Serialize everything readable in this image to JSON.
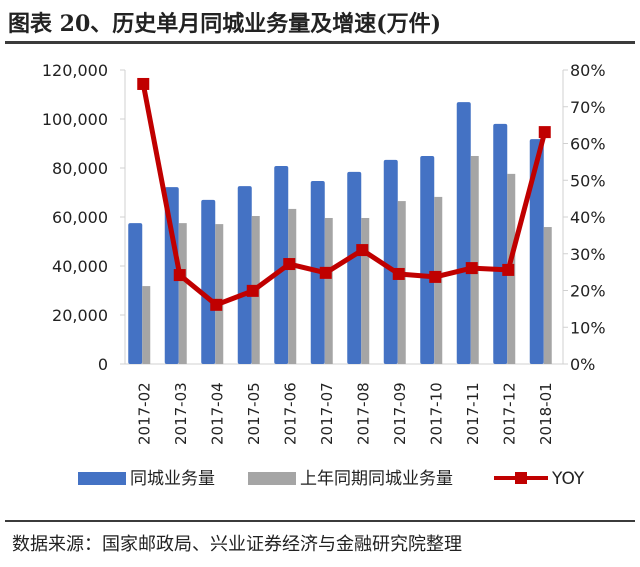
{
  "title": "图表 20、历史单月同城业务量及增速(万件)",
  "source": "数据来源：国家邮政局、兴业证券经济与金融研究院整理",
  "chart_data": {
    "type": "bar+line",
    "categories": [
      "2017-02",
      "2017-03",
      "2017-04",
      "2017-05",
      "2017-06",
      "2017-07",
      "2017-08",
      "2017-09",
      "2017-10",
      "2017-11",
      "2017-12",
      "2018-01"
    ],
    "series": [
      {
        "name": "同城业务量",
        "type": "bar",
        "axis": "left",
        "color": "#4472C4",
        "values": [
          57500,
          72200,
          67000,
          72600,
          80800,
          74700,
          78400,
          83300,
          84900,
          106900,
          98000,
          91800
        ]
      },
      {
        "name": "上年同期同城业务量",
        "type": "bar",
        "axis": "left",
        "color": "#A5A5A5",
        "values": [
          31800,
          57500,
          57100,
          60400,
          63300,
          59600,
          59600,
          66500,
          68200,
          84900,
          77600,
          55900
        ]
      },
      {
        "name": "YOY",
        "type": "line",
        "axis": "right",
        "color": "#C00000",
        "values": [
          76.2,
          24.2,
          16.1,
          19.9,
          27.2,
          24.8,
          31.0,
          24.5,
          23.7,
          26.1,
          25.6,
          63.1
        ]
      }
    ],
    "left_axis": {
      "ylim": [
        0,
        120000
      ],
      "ticks": [
        "0",
        "20,000",
        "40,000",
        "60,000",
        "80,000",
        "100,000",
        "120,000"
      ]
    },
    "right_axis": {
      "ylim": [
        0,
        80
      ],
      "ticks": [
        "0%",
        "10%",
        "20%",
        "30%",
        "40%",
        "50%",
        "60%",
        "70%",
        "80%"
      ]
    },
    "legend_position": "bottom",
    "grid": false
  }
}
